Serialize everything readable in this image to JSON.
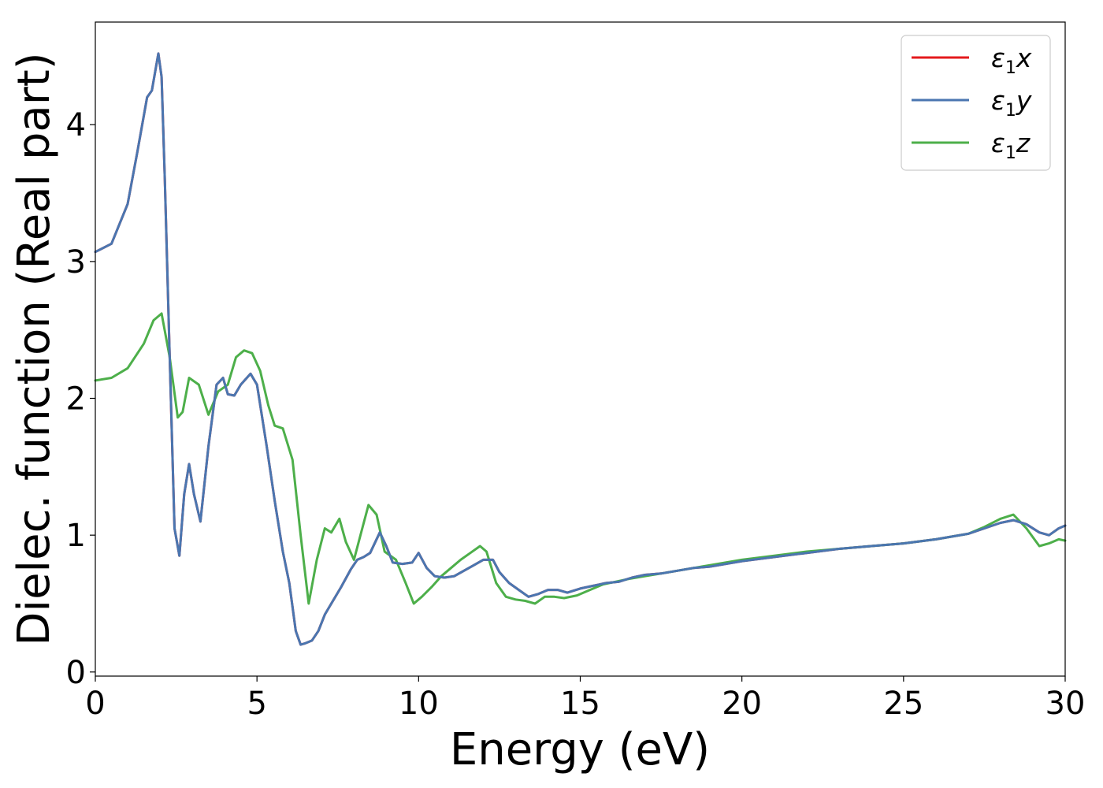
{
  "chart_data": {
    "type": "line",
    "title": "",
    "xlabel": "Energy (eV)",
    "ylabel": "Dielec. function (Real part)",
    "xlim": [
      0,
      30
    ],
    "ylim": [
      -0.03,
      4.75
    ],
    "xticks": [
      "0",
      "5",
      "10",
      "15",
      "20",
      "25",
      "30"
    ],
    "yticks": [
      "0",
      "1",
      "2",
      "3",
      "4"
    ],
    "grid": false,
    "legend_position": "top-right",
    "legend": [
      {
        "base": "ε",
        "sub": "1",
        "suffix": "x",
        "color": "#e41a1c"
      },
      {
        "base": "ε",
        "sub": "1",
        "suffix": "y",
        "color": "#4a76b0"
      },
      {
        "base": "ε",
        "sub": "1",
        "suffix": "z",
        "color": "#4daf4a"
      }
    ],
    "series": [
      {
        "name": "ε1x",
        "color": "#e41a1c",
        "x": [
          0,
          0.5,
          1.0,
          1.3,
          1.6,
          1.75,
          1.95,
          2.05,
          2.15,
          2.3,
          2.45,
          2.6,
          2.75,
          2.9,
          3.05,
          3.25,
          3.5,
          3.75,
          3.95,
          4.1,
          4.3,
          4.5,
          4.8,
          5.0,
          5.3,
          5.55,
          5.8,
          6.0,
          6.2,
          6.35,
          6.5,
          6.7,
          6.9,
          7.1,
          7.3,
          7.6,
          7.9,
          8.1,
          8.3,
          8.5,
          8.8,
          9.0,
          9.2,
          9.5,
          9.8,
          10.0,
          10.25,
          10.5,
          10.8,
          11.1,
          11.4,
          11.7,
          12.0,
          12.3,
          12.5,
          12.8,
          13.1,
          13.4,
          13.7,
          14.0,
          14.3,
          14.6,
          15.0,
          15.4,
          15.8,
          16.2,
          16.6,
          17.0,
          17.5,
          18.0,
          18.5,
          19.0,
          19.5,
          20.0,
          21.0,
          22.0,
          23.0,
          24.0,
          25.0,
          26.0,
          27.0,
          27.5,
          28.0,
          28.4,
          28.8,
          29.2,
          29.5,
          29.8,
          30.0
        ],
        "y": [
          3.07,
          3.13,
          3.42,
          3.8,
          4.2,
          4.25,
          4.52,
          4.35,
          3.6,
          2.3,
          1.05,
          0.85,
          1.3,
          1.52,
          1.3,
          1.1,
          1.65,
          2.1,
          2.15,
          2.03,
          2.02,
          2.1,
          2.18,
          2.1,
          1.65,
          1.25,
          0.88,
          0.65,
          0.3,
          0.2,
          0.21,
          0.23,
          0.3,
          0.42,
          0.5,
          0.62,
          0.75,
          0.82,
          0.84,
          0.87,
          1.02,
          0.92,
          0.8,
          0.79,
          0.8,
          0.87,
          0.76,
          0.7,
          0.69,
          0.7,
          0.74,
          0.78,
          0.82,
          0.82,
          0.73,
          0.65,
          0.6,
          0.55,
          0.57,
          0.6,
          0.6,
          0.58,
          0.61,
          0.63,
          0.65,
          0.66,
          0.69,
          0.71,
          0.72,
          0.74,
          0.76,
          0.77,
          0.79,
          0.81,
          0.84,
          0.87,
          0.9,
          0.92,
          0.94,
          0.97,
          1.01,
          1.05,
          1.09,
          1.11,
          1.08,
          1.02,
          1.0,
          1.05,
          1.07
        ]
      },
      {
        "name": "ε1y",
        "color": "#4a76b0",
        "x": [
          0,
          0.5,
          1.0,
          1.3,
          1.6,
          1.75,
          1.95,
          2.05,
          2.15,
          2.3,
          2.45,
          2.6,
          2.75,
          2.9,
          3.05,
          3.25,
          3.5,
          3.75,
          3.95,
          4.1,
          4.3,
          4.5,
          4.8,
          5.0,
          5.3,
          5.55,
          5.8,
          6.0,
          6.2,
          6.35,
          6.5,
          6.7,
          6.9,
          7.1,
          7.3,
          7.6,
          7.9,
          8.1,
          8.3,
          8.5,
          8.8,
          9.0,
          9.2,
          9.5,
          9.8,
          10.0,
          10.25,
          10.5,
          10.8,
          11.1,
          11.4,
          11.7,
          12.0,
          12.3,
          12.5,
          12.8,
          13.1,
          13.4,
          13.7,
          14.0,
          14.3,
          14.6,
          15.0,
          15.4,
          15.8,
          16.2,
          16.6,
          17.0,
          17.5,
          18.0,
          18.5,
          19.0,
          19.5,
          20.0,
          21.0,
          22.0,
          23.0,
          24.0,
          25.0,
          26.0,
          27.0,
          27.5,
          28.0,
          28.4,
          28.8,
          29.2,
          29.5,
          29.8,
          30.0
        ],
        "y": [
          3.07,
          3.13,
          3.42,
          3.8,
          4.2,
          4.25,
          4.52,
          4.35,
          3.6,
          2.3,
          1.05,
          0.85,
          1.3,
          1.52,
          1.3,
          1.1,
          1.65,
          2.1,
          2.15,
          2.03,
          2.02,
          2.1,
          2.18,
          2.1,
          1.65,
          1.25,
          0.88,
          0.65,
          0.3,
          0.2,
          0.21,
          0.23,
          0.3,
          0.42,
          0.5,
          0.62,
          0.75,
          0.82,
          0.84,
          0.87,
          1.02,
          0.92,
          0.8,
          0.79,
          0.8,
          0.87,
          0.76,
          0.7,
          0.69,
          0.7,
          0.74,
          0.78,
          0.82,
          0.82,
          0.73,
          0.65,
          0.6,
          0.55,
          0.57,
          0.6,
          0.6,
          0.58,
          0.61,
          0.63,
          0.65,
          0.66,
          0.69,
          0.71,
          0.72,
          0.74,
          0.76,
          0.77,
          0.79,
          0.81,
          0.84,
          0.87,
          0.9,
          0.92,
          0.94,
          0.97,
          1.01,
          1.05,
          1.09,
          1.11,
          1.08,
          1.02,
          1.0,
          1.05,
          1.07
        ]
      },
      {
        "name": "ε1z",
        "color": "#4daf4a",
        "x": [
          0,
          0.5,
          1.0,
          1.5,
          1.8,
          2.05,
          2.3,
          2.55,
          2.7,
          2.9,
          3.2,
          3.5,
          3.8,
          4.1,
          4.35,
          4.6,
          4.85,
          5.1,
          5.35,
          5.55,
          5.8,
          6.1,
          6.35,
          6.6,
          6.85,
          7.1,
          7.3,
          7.55,
          7.75,
          8.0,
          8.2,
          8.45,
          8.7,
          8.95,
          9.3,
          9.6,
          9.85,
          10.1,
          10.4,
          10.7,
          11.0,
          11.3,
          11.6,
          11.9,
          12.1,
          12.4,
          12.7,
          13.0,
          13.3,
          13.6,
          13.9,
          14.2,
          14.5,
          14.9,
          15.3,
          15.7,
          16.1,
          16.5,
          17.0,
          17.5,
          18.0,
          18.5,
          19.0,
          19.5,
          20.0,
          21.0,
          22.0,
          23.0,
          24.0,
          25.0,
          26.0,
          27.0,
          27.5,
          28.0,
          28.4,
          28.8,
          29.2,
          29.5,
          29.8,
          30.0
        ],
        "y": [
          2.13,
          2.15,
          2.22,
          2.4,
          2.57,
          2.62,
          2.3,
          1.86,
          1.9,
          2.15,
          2.1,
          1.88,
          2.05,
          2.1,
          2.3,
          2.35,
          2.33,
          2.2,
          1.95,
          1.8,
          1.78,
          1.55,
          1.0,
          0.5,
          0.82,
          1.05,
          1.02,
          1.12,
          0.95,
          0.82,
          1.0,
          1.22,
          1.15,
          0.88,
          0.82,
          0.65,
          0.5,
          0.55,
          0.62,
          0.7,
          0.76,
          0.82,
          0.87,
          0.92,
          0.88,
          0.65,
          0.55,
          0.53,
          0.52,
          0.5,
          0.55,
          0.55,
          0.54,
          0.56,
          0.6,
          0.64,
          0.66,
          0.68,
          0.7,
          0.72,
          0.74,
          0.76,
          0.78,
          0.8,
          0.82,
          0.85,
          0.88,
          0.9,
          0.92,
          0.94,
          0.97,
          1.01,
          1.06,
          1.12,
          1.15,
          1.05,
          0.92,
          0.94,
          0.97,
          0.96
        ]
      }
    ]
  }
}
